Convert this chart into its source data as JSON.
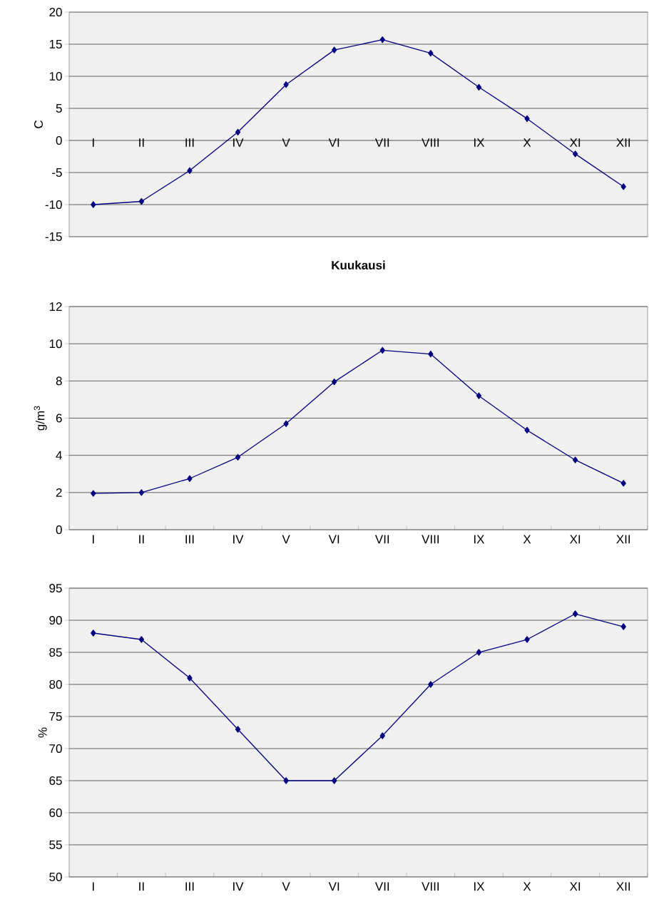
{
  "chart_data": [
    {
      "type": "line",
      "xlabel": "Kuukausi",
      "ylabel": "C",
      "categories": [
        "I",
        "II",
        "III",
        "IV",
        "V",
        "VI",
        "VII",
        "VIII",
        "IX",
        "X",
        "XI",
        "XII"
      ],
      "values": [
        -10,
        -9.5,
        -4.7,
        1.3,
        8.7,
        14.1,
        15.7,
        13.6,
        8.3,
        3.4,
        -2.1,
        -7.2
      ],
      "color": "#000080",
      "marker": "diamond",
      "ylim": [
        -15,
        20
      ],
      "yticks": [
        -15,
        -10,
        -5,
        0,
        5,
        10,
        15,
        20
      ],
      "grid": "y"
    },
    {
      "type": "line",
      "ylabel": "g/m$^{3}$",
      "categories": [
        "I",
        "II",
        "III",
        "IV",
        "V",
        "VI",
        "VII",
        "VIII",
        "IX",
        "X",
        "XI",
        "XII"
      ],
      "values": [
        1.95,
        2.0,
        2.75,
        3.9,
        5.7,
        7.95,
        9.65,
        9.45,
        7.2,
        5.35,
        3.75,
        2.5
      ],
      "color": "#000080",
      "marker": "diamond",
      "ylim": [
        0,
        12
      ],
      "yticks": [
        0,
        2,
        4,
        6,
        8,
        10,
        12
      ],
      "grid": "y"
    },
    {
      "type": "line",
      "ylabel": "%",
      "categories": [
        "I",
        "II",
        "III",
        "IV",
        "V",
        "VI",
        "VII",
        "VIII",
        "IX",
        "X",
        "XI",
        "XII"
      ],
      "values": [
        88,
        87,
        81,
        73,
        65,
        65,
        72,
        80,
        85,
        87,
        91,
        89
      ],
      "color": "#000080",
      "marker": "diamond",
      "ylim": [
        50,
        95
      ],
      "yticks": [
        50,
        55,
        60,
        65,
        70,
        75,
        80,
        85,
        90,
        95
      ],
      "grid": "y"
    }
  ]
}
